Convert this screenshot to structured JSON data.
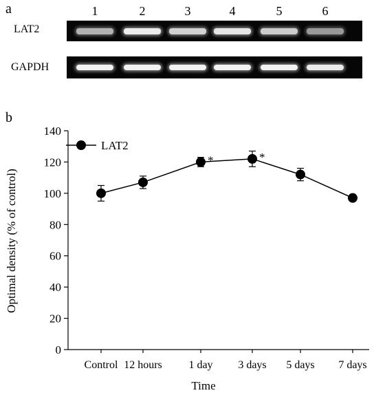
{
  "panel_a": {
    "label": "a",
    "lanes": [
      "1",
      "2",
      "3",
      "4",
      "5",
      "6"
    ],
    "rows": [
      {
        "name": "LAT2",
        "intensities": [
          0.7,
          0.92,
          0.82,
          0.9,
          0.8,
          0.6
        ]
      },
      {
        "name": "GAPDH",
        "intensities": [
          0.95,
          0.95,
          0.95,
          0.95,
          0.95,
          0.92
        ]
      }
    ]
  },
  "panel_b": {
    "label": "b"
  },
  "chart_data": {
    "type": "line",
    "categories": [
      "Control",
      "12 hours",
      "1 day",
      "3 days",
      "5 days",
      "7 days"
    ],
    "series": [
      {
        "name": "LAT2",
        "values": [
          100,
          107,
          120,
          122,
          112,
          97
        ],
        "errors": [
          5,
          4,
          3,
          5,
          4,
          0
        ],
        "significance": [
          "",
          "",
          "*",
          "*",
          "",
          ""
        ]
      }
    ],
    "xlabel": "Time",
    "ylabel": "Optimal density (% of control)",
    "ylim": [
      0,
      140
    ],
    "yticks": [
      0,
      20,
      40,
      60,
      80,
      100,
      120,
      140
    ],
    "legend": "top-left",
    "grid": false,
    "color": "#000000"
  }
}
